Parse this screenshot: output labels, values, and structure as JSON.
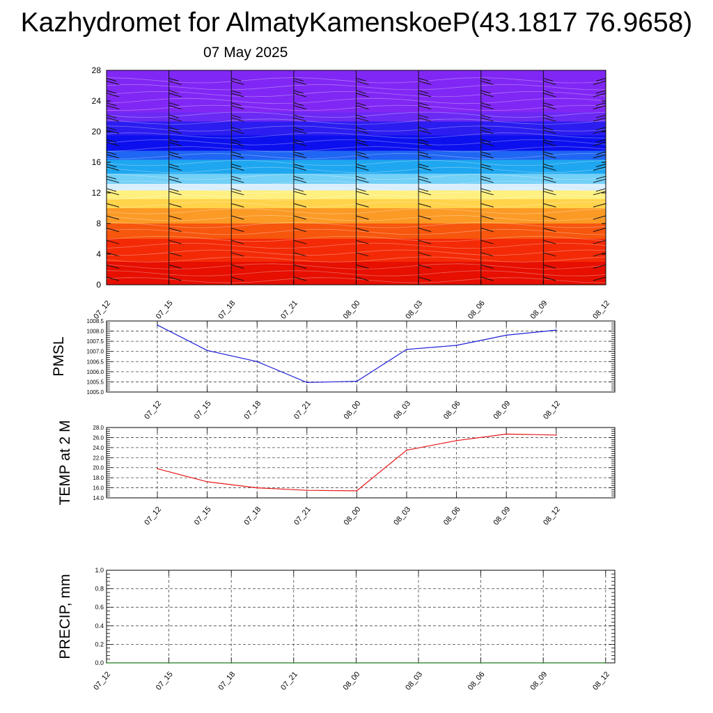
{
  "title": "Kazhydromet for AlmatyKamenskoeP(43.1817 76.9658)",
  "subtitle": "07 May 2025",
  "chart_data": [
    {
      "type": "heatmap",
      "title": "",
      "xlabel": "",
      "ylabel": "",
      "categories": [
        "07_12",
        "07_15",
        "07_18",
        "07_21",
        "08_00",
        "08_03",
        "08_06",
        "08_09",
        "08_12"
      ],
      "ylim": [
        0,
        28
      ],
      "yticks": [
        0,
        4,
        8,
        12,
        16,
        20,
        24,
        28
      ],
      "color_bands": [
        {
          "from": 0,
          "to": 3,
          "color": "#e60f00"
        },
        {
          "from": 3,
          "to": 6,
          "color": "#f42a06"
        },
        {
          "from": 6,
          "to": 8,
          "color": "#f7560d"
        },
        {
          "from": 8,
          "to": 10,
          "color": "#fb9a25"
        },
        {
          "from": 10,
          "to": 11.2,
          "color": "#ffd34a"
        },
        {
          "from": 11.2,
          "to": 12.3,
          "color": "#fff07f"
        },
        {
          "from": 12.3,
          "to": 13.2,
          "color": "#d9eefc"
        },
        {
          "from": 13.2,
          "to": 14.5,
          "color": "#73d0f7"
        },
        {
          "from": 14.5,
          "to": 16.3,
          "color": "#1ea7f0"
        },
        {
          "from": 16.3,
          "to": 17.5,
          "color": "#1f66f2"
        },
        {
          "from": 17.5,
          "to": 19.5,
          "color": "#0c10ee"
        },
        {
          "from": 19.5,
          "to": 21.3,
          "color": "#2b1df0"
        },
        {
          "from": 21.3,
          "to": 22.5,
          "color": "#6b2af3"
        },
        {
          "from": 22.5,
          "to": 28,
          "color": "#8127f5"
        }
      ]
    },
    {
      "type": "line",
      "ylabel": "PMSL",
      "categories": [
        "07_12",
        "07_15",
        "07_18",
        "07_21",
        "08_00",
        "08_03",
        "08_06",
        "08_09",
        "08_12"
      ],
      "ylim": [
        1005.0,
        1008.5
      ],
      "yticks": [
        "1005.0",
        "1005.5",
        "1006.0",
        "1006.5",
        "1007.0",
        "1007.5",
        "1008.0",
        "1008.5"
      ],
      "grid": true,
      "series": [
        {
          "color": "#1f1fd9",
          "values": [
            1008.3,
            1007.05,
            1006.5,
            1005.47,
            1005.53,
            1007.1,
            1007.3,
            1007.8,
            1008.05
          ]
        }
      ]
    },
    {
      "type": "line",
      "ylabel": "TEMP at 2 M",
      "categories": [
        "07_12",
        "07_15",
        "07_18",
        "07_21",
        "08_00",
        "08_03",
        "08_06",
        "08_09",
        "08_12"
      ],
      "ylim": [
        14.0,
        28.0
      ],
      "yticks": [
        "14.0",
        "16.0",
        "18.0",
        "20.0",
        "22.0",
        "24.0",
        "26.0",
        "28.0"
      ],
      "grid": true,
      "series": [
        {
          "color": "#e81818",
          "values": [
            19.8,
            17.2,
            16.0,
            15.5,
            15.4,
            23.5,
            25.4,
            26.7,
            26.5
          ]
        }
      ]
    },
    {
      "type": "line",
      "ylabel": "PRECIP, mm",
      "categories": [
        "07_12",
        "07_15",
        "07_18",
        "07_21",
        "08_00",
        "08_03",
        "08_06",
        "08_09",
        "08_12"
      ],
      "ylim": [
        0.0,
        1.0
      ],
      "yticks": [
        "0.0",
        "0.2",
        "0.4",
        "0.6",
        "0.8",
        "1.0"
      ],
      "grid": true,
      "series": [
        {
          "color": "#1a7a1a",
          "values": [
            0,
            0,
            0,
            0,
            0,
            0,
            0,
            0,
            0
          ]
        }
      ]
    }
  ]
}
